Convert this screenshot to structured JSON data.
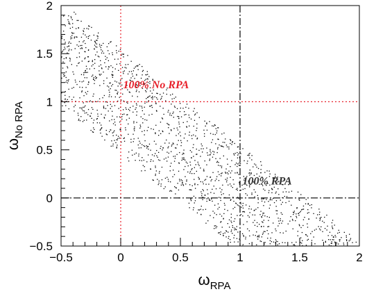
{
  "chart_data": {
    "type": "scatter",
    "title": "",
    "xlabel": {
      "main": "ω",
      "sub": "RPA"
    },
    "ylabel": {
      "main": "ω",
      "sub": "No RPA"
    },
    "xlim": [
      -0.5,
      2
    ],
    "ylim": [
      -0.5,
      2
    ],
    "xticks": [
      {
        "value": -0.5,
        "label": "−0.5"
      },
      {
        "value": 0,
        "label": "0"
      },
      {
        "value": 0.5,
        "label": "0.5"
      },
      {
        "value": 1,
        "label": "1"
      },
      {
        "value": 1.5,
        "label": "1.5"
      },
      {
        "value": 2,
        "label": "2"
      }
    ],
    "yticks": [
      {
        "value": -0.5,
        "label": "−0.5"
      },
      {
        "value": 0,
        "label": "0"
      },
      {
        "value": 0.5,
        "label": "0.5"
      },
      {
        "value": 1,
        "label": "1"
      },
      {
        "value": 1.5,
        "label": "1.5"
      },
      {
        "value": 2,
        "label": "2"
      }
    ],
    "grid": false,
    "reference_lines": [
      {
        "orientation": "vertical",
        "value": 0,
        "style": "dotted",
        "color": "#e8202a"
      },
      {
        "orientation": "horizontal",
        "value": 1,
        "style": "dotted",
        "color": "#e8202a"
      },
      {
        "orientation": "vertical",
        "value": 1,
        "style": "dash-dot",
        "color": "#000000"
      },
      {
        "orientation": "horizontal",
        "value": 0,
        "style": "dash-dot",
        "color": "#000000"
      }
    ],
    "annotations": [
      {
        "text": "100% No RPA",
        "x": 0.02,
        "y": 1.14,
        "color": "#e8202a"
      },
      {
        "text": "100% RPA",
        "x": 1.02,
        "y": 0.14,
        "color": "#333333"
      }
    ],
    "point_cloud": {
      "description_band": "points follow a band centered on y = 1 - x",
      "n_points": 1600,
      "band_center": {
        "slope": -1.0,
        "intercept": 1.0
      },
      "band_halfwidth_y": 0.55,
      "x_range": [
        -0.5,
        2.0
      ],
      "y_range": [
        -0.5,
        2.0
      ],
      "color": "#000000"
    }
  },
  "colors": {
    "axis": "#000000",
    "red": "#e8202a",
    "background": "#ffffff"
  }
}
